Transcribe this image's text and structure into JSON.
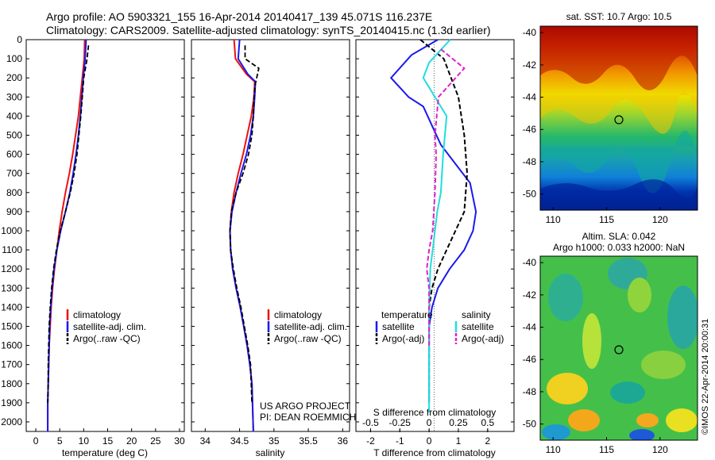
{
  "header": {
    "line1": "Argo profile: AO 5903321_155 16-Apr-2014 20140417_139 45.071S 116.237E",
    "line2": "Climatology: CARS2009. Satellite-adjusted climatology: synTS_20140415.nc (1.3d earlier)"
  },
  "colors": {
    "climatology": "#ee1111",
    "satellite": "#1a1aee",
    "argo": "#000000",
    "sal_satellite": "#22dddd",
    "sal_argo": "#dd22cc"
  },
  "depth_ticks": [
    "0",
    "100",
    "200",
    "300",
    "400",
    "500",
    "600",
    "700",
    "800",
    "900",
    "1000",
    "1100",
    "1200",
    "1300",
    "1400",
    "1500",
    "1600",
    "1700",
    "1800",
    "1900",
    "2000"
  ],
  "temperature_panel": {
    "xlabel": "temperature (deg C)",
    "xticks": [
      "0",
      "5",
      "10",
      "15",
      "20",
      "25",
      "30"
    ],
    "legend": [
      "climatology",
      "satellite-adj. clim.",
      "Argo(..raw -QC)"
    ]
  },
  "salinity_panel": {
    "xlabel": "salinity",
    "xticks": [
      "34",
      "34.5",
      "35",
      "35.5",
      "36"
    ],
    "legend": [
      "climatology",
      "satellite-adj. clim.",
      "Argo(..raw -QC)"
    ],
    "note_line1": "US ARGO PROJECT",
    "note_line2": "PI: DEAN ROEMMICH"
  },
  "difference_panel": {
    "xlabel": "T difference from climatology",
    "top_label": "S difference from climatology",
    "bottom_ticks": [
      "-2",
      "-1",
      "0",
      "1",
      "2"
    ],
    "top_ticks": [
      "-0.5",
      "-0.25",
      "0",
      "0.25",
      "0.5"
    ],
    "legend_t_title": "temperature",
    "legend_s_title": "salinity",
    "legend_t": [
      "satellite",
      "Argo(-adj)"
    ],
    "legend_s": [
      "satellite",
      "Argo(-adj)"
    ]
  },
  "sst_map": {
    "title": "sat. SST: 10.7 Argo: 10.5",
    "yticks": [
      "-40",
      "-42",
      "-44",
      "-46",
      "-48",
      "-50"
    ],
    "xticks": [
      "110",
      "115",
      "120"
    ]
  },
  "sla_map": {
    "title1": "Altim. SLA: 0.042",
    "title2": "Argo h1000: 0.033 h2000: NaN",
    "yticks": [
      "-40",
      "-42",
      "-44",
      "-46",
      "-48",
      "-50"
    ],
    "xticks": [
      "110",
      "115",
      "120"
    ],
    "stamp": "©IMOS 22-Apr-2014 20:00:31"
  },
  "chart_data": [
    {
      "type": "line",
      "ylabel": "",
      "xlabel": "temperature (deg C)",
      "xlim": [
        -2,
        31
      ],
      "ylim": [
        2050,
        0
      ],
      "series": [
        {
          "name": "climatology",
          "x": [
            10.2,
            10.1,
            9.7,
            9.3,
            8.9,
            8.3,
            7.7,
            7.0,
            6.2,
            5.5,
            4.9,
            4.4,
            3.9,
            3.5,
            3.2,
            3.0,
            2.8,
            2.7,
            2.6,
            2.5,
            2.5
          ],
          "y": [
            0,
            100,
            200,
            300,
            400,
            500,
            600,
            700,
            800,
            900,
            1000,
            1100,
            1200,
            1300,
            1400,
            1500,
            1600,
            1700,
            1800,
            1900,
            2050
          ]
        },
        {
          "name": "satellite-adj. clim.",
          "x": [
            10.5,
            10.3,
            9.9,
            9.6,
            9.3,
            8.9,
            8.4,
            7.8,
            7.1,
            6.2,
            5.2,
            4.4,
            3.8,
            3.4,
            3.1,
            2.9,
            2.8,
            2.7,
            2.6,
            2.5,
            2.5
          ],
          "y": [
            0,
            100,
            200,
            300,
            400,
            500,
            600,
            700,
            800,
            900,
            1000,
            1100,
            1200,
            1300,
            1400,
            1500,
            1600,
            1700,
            1800,
            1900,
            2050
          ]
        },
        {
          "name": "Argo(..raw -QC)",
          "x": [
            11.0,
            10.7,
            10.0,
            9.7,
            9.4,
            9.0,
            8.6,
            8.0,
            7.2,
            6.2,
            5.1,
            4.3,
            3.7,
            3.3,
            3.0,
            2.8,
            2.7,
            2.6,
            2.6,
            2.5
          ],
          "y": [
            30,
            100,
            200,
            300,
            400,
            500,
            600,
            700,
            800,
            900,
            1000,
            1100,
            1200,
            1300,
            1400,
            1500,
            1600,
            1700,
            1800,
            1900
          ]
        }
      ]
    },
    {
      "type": "line",
      "xlabel": "salinity",
      "xlim": [
        33.8,
        36.1
      ],
      "ylim": [
        2050,
        0
      ],
      "series": [
        {
          "name": "climatology",
          "x": [
            34.42,
            34.44,
            34.6,
            34.72,
            34.71,
            34.67,
            34.61,
            34.55,
            34.48,
            34.42,
            34.38,
            34.36,
            34.37,
            34.4,
            34.45,
            34.51,
            34.56,
            34.61,
            34.65,
            34.68,
            34.7
          ],
          "y": [
            0,
            100,
            180,
            220,
            300,
            400,
            500,
            600,
            700,
            800,
            900,
            1000,
            1100,
            1200,
            1300,
            1400,
            1500,
            1600,
            1700,
            1800,
            2050
          ]
        },
        {
          "name": "satellite-adj. clim.",
          "x": [
            34.5,
            34.48,
            34.62,
            34.73,
            34.72,
            34.7,
            34.66,
            34.6,
            34.52,
            34.45,
            34.39,
            34.36,
            34.37,
            34.4,
            34.45,
            34.51,
            34.56,
            34.61,
            34.65,
            34.68,
            34.7
          ],
          "y": [
            0,
            100,
            180,
            220,
            300,
            400,
            500,
            600,
            700,
            800,
            900,
            1000,
            1100,
            1200,
            1300,
            1400,
            1500,
            1600,
            1700,
            1800,
            2050
          ]
        },
        {
          "name": "Argo(..raw -QC)",
          "x": [
            34.58,
            34.58,
            34.78,
            34.73,
            34.71,
            34.7,
            34.68,
            34.63,
            34.55,
            34.45,
            34.38,
            34.36,
            34.37,
            34.41,
            34.46,
            34.52,
            34.57,
            34.62,
            34.66,
            34.68
          ],
          "y": [
            30,
            100,
            150,
            230,
            300,
            400,
            500,
            600,
            700,
            800,
            900,
            1000,
            1100,
            1200,
            1300,
            1400,
            1500,
            1600,
            1700,
            1900
          ]
        }
      ]
    },
    {
      "type": "line",
      "xlabel": "T difference from climatology",
      "xlim": [
        -2.5,
        3.0
      ],
      "ylim": [
        2050,
        0
      ],
      "series": [
        {
          "name": "temperature satellite",
          "x": [
            0.3,
            -0.6,
            -1.3,
            -0.7,
            -0.2,
            0.1,
            0.4,
            0.9,
            1.4,
            1.6,
            1.5,
            1.2,
            0.7,
            0.3,
            0.1,
            0,
            0,
            0,
            0,
            0
          ],
          "y": [
            0,
            80,
            200,
            300,
            350,
            450,
            550,
            650,
            750,
            900,
            1000,
            1100,
            1200,
            1300,
            1400,
            1500,
            1600,
            1700,
            1800,
            1900
          ]
        },
        {
          "name": "temperature Argo(-adj)",
          "x": [
            -0.3,
            0.5,
            1.0,
            1.2,
            1.3,
            1.2,
            0.9,
            0.6,
            0.3,
            0.1,
            0,
            0,
            0,
            0,
            0
          ],
          "y": [
            0,
            100,
            300,
            500,
            700,
            900,
            1000,
            1100,
            1200,
            1300,
            1400,
            1500,
            1600,
            1700,
            1900
          ]
        },
        {
          "name": "salinity satellite",
          "x": [
            0.18,
            0.0,
            -0.05,
            0.05,
            0.15,
            0.12,
            0.1,
            0.07,
            0.05,
            0.03,
            0.01,
            0,
            0,
            0,
            0
          ],
          "y": [
            0,
            120,
            200,
            300,
            400,
            600,
            800,
            900,
            1000,
            1100,
            1200,
            1400,
            1600,
            1800,
            1950
          ]
        },
        {
          "name": "salinity Argo(-adj)",
          "x": [
            0.1,
            0.3,
            0.08,
            0.05,
            0.06,
            0.05,
            0.03,
            0.0,
            -0.02,
            0,
            0,
            0,
            0
          ],
          "y": [
            50,
            150,
            300,
            500,
            600,
            800,
            1000,
            1100,
            1200,
            1300,
            1400,
            1500,
            1600
          ]
        }
      ]
    }
  ]
}
